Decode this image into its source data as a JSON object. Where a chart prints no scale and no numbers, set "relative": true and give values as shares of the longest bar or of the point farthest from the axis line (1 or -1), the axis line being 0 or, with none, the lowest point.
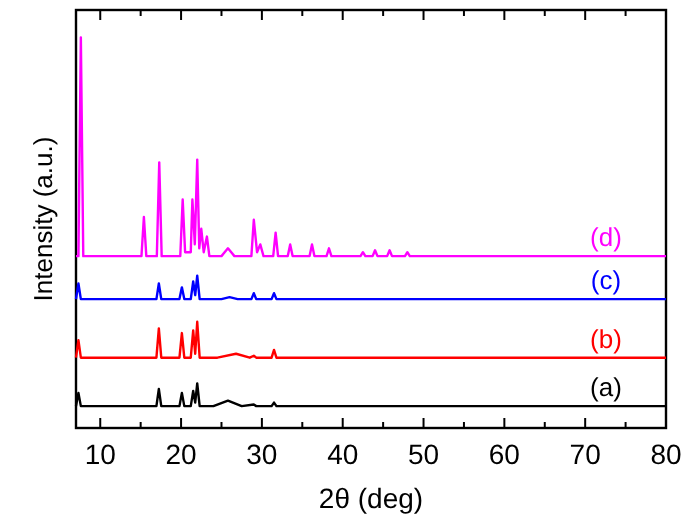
{
  "chart_data": {
    "type": "line",
    "relative": true,
    "xlabel": "2θ (deg)",
    "ylabel": "Intensity (a.u.)",
    "xlim": [
      7,
      80
    ],
    "xticks": [
      10,
      {
        "value": 15,
        "label": null
      },
      20,
      {
        "value": 25,
        "label": null
      },
      30,
      {
        "value": 35,
        "label": null
      },
      40,
      {
        "value": 45,
        "label": null
      },
      50,
      {
        "value": 55,
        "label": null
      },
      60,
      {
        "value": 65,
        "label": null
      },
      70,
      {
        "value": 75,
        "label": null
      },
      80
    ],
    "series": [
      {
        "name": "(a)",
        "color": "#000000",
        "x": [
          7,
          7.3,
          7.6,
          16.95,
          17.25,
          17.55,
          19.8,
          20.1,
          20.4,
          21.2,
          21.5,
          21.75,
          22,
          22.3,
          24,
          25.8,
          27.5,
          29,
          29.3,
          31.2,
          31.5,
          31.8,
          80
        ],
        "values": [
          0.056,
          0.09,
          0.056,
          0.056,
          0.1,
          0.056,
          0.056,
          0.09,
          0.056,
          0.056,
          0.095,
          0.065,
          0.114,
          0.056,
          0.056,
          0.07,
          0.056,
          0.06,
          0.056,
          0.056,
          0.065,
          0.056,
          0.056
        ]
      },
      {
        "name": "(b)",
        "color": "#ff0000",
        "x": [
          7,
          7.3,
          7.6,
          16.95,
          17.25,
          17.55,
          19.8,
          20.1,
          20.4,
          21.2,
          21.5,
          21.75,
          22,
          22.3,
          24.5,
          26.8,
          28.5,
          29,
          29.3,
          31.2,
          31.5,
          31.8,
          80
        ],
        "values": [
          0.18,
          0.225,
          0.18,
          0.18,
          0.255,
          0.18,
          0.18,
          0.243,
          0.18,
          0.18,
          0.25,
          0.19,
          0.272,
          0.18,
          0.18,
          0.19,
          0.18,
          0.185,
          0.18,
          0.18,
          0.2,
          0.18,
          0.18
        ]
      },
      {
        "name": "(c)",
        "color": "#0000ff",
        "x": [
          7,
          7.3,
          7.6,
          16.95,
          17.25,
          17.55,
          19.8,
          20.1,
          20.4,
          21.2,
          21.5,
          21.75,
          22,
          22.3,
          25,
          26,
          27,
          28.7,
          29,
          29.3,
          31.2,
          31.5,
          31.8,
          80
        ],
        "values": [
          0.33,
          0.37,
          0.33,
          0.33,
          0.37,
          0.33,
          0.33,
          0.36,
          0.33,
          0.33,
          0.375,
          0.34,
          0.39,
          0.33,
          0.33,
          0.335,
          0.33,
          0.33,
          0.345,
          0.33,
          0.33,
          0.345,
          0.33,
          0.33
        ]
      },
      {
        "name": "(d)",
        "color": "#ff00ff",
        "x": [
          7,
          7.3,
          7.6,
          7.9,
          15.1,
          15.4,
          15.7,
          17,
          17.3,
          17.6,
          19.9,
          20.2,
          20.5,
          21.2,
          21.4,
          21.7,
          22,
          22.25,
          22.5,
          22.8,
          23.2,
          23.5,
          25,
          25.8,
          26.6,
          28.7,
          29,
          29.4,
          29.8,
          30.2,
          31.4,
          31.7,
          32,
          33.2,
          33.5,
          33.8,
          35.9,
          36.2,
          36.5,
          38,
          38.3,
          38.6,
          42.2,
          42.5,
          42.8,
          43.7,
          44,
          44.3,
          45.5,
          45.8,
          46.1,
          47.7,
          48,
          48.3,
          80
        ],
        "values": [
          0.44,
          0.44,
          1.0,
          0.44,
          0.44,
          0.54,
          0.44,
          0.44,
          0.68,
          0.44,
          0.44,
          0.585,
          0.45,
          0.45,
          0.585,
          0.47,
          0.687,
          0.46,
          0.51,
          0.45,
          0.49,
          0.44,
          0.44,
          0.46,
          0.44,
          0.44,
          0.533,
          0.45,
          0.47,
          0.44,
          0.44,
          0.5,
          0.44,
          0.44,
          0.47,
          0.44,
          0.44,
          0.47,
          0.44,
          0.44,
          0.46,
          0.44,
          0.44,
          0.45,
          0.44,
          0.44,
          0.455,
          0.44,
          0.44,
          0.455,
          0.44,
          0.44,
          0.45,
          0.44,
          0.44
        ]
      }
    ]
  }
}
